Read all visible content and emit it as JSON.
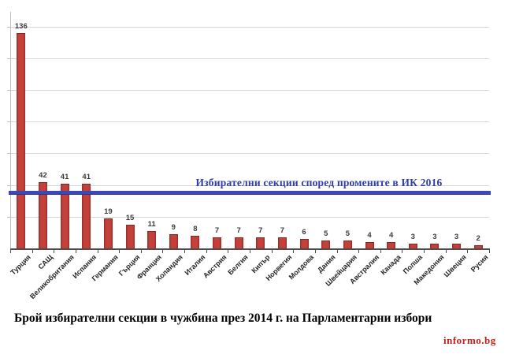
{
  "chart_data": {
    "type": "bar",
    "title": "Брой избирателни секции в чужбина през 2014 г. на Парламентарни избори",
    "categories": [
      "Турция",
      "САЩ",
      "Великобритания",
      "Испания",
      "Германия",
      "Гърция",
      "Франция",
      "Холандия",
      "Италия",
      "Австрия",
      "Белгия",
      "Кипър",
      "Норвегия",
      "Молдова",
      "Дания",
      "Швейцария",
      "Австралия",
      "Канада",
      "Полша",
      "Македония",
      "Швеция",
      "Русия"
    ],
    "values": [
      136,
      42,
      41,
      41,
      19,
      15,
      11,
      9,
      8,
      7,
      7,
      7,
      7,
      6,
      5,
      5,
      4,
      4,
      3,
      3,
      3,
      2
    ],
    "ylim": [
      0,
      140
    ],
    "gridline_interval": 20,
    "grid": true,
    "y_axis_labels_visible": false,
    "legend": "none",
    "bar_color": "#bb342e",
    "bar_edge_color": "#9c2a24",
    "value_label_color": "#3b3b3b",
    "annotation": {
      "text": "Избирателни секции според промените в ИК 2016",
      "value": 35,
      "line_color": "#3b49b8",
      "text_color": "#2e3da8"
    }
  },
  "branding": {
    "text": "informo.bg",
    "color": "#c2201a"
  }
}
